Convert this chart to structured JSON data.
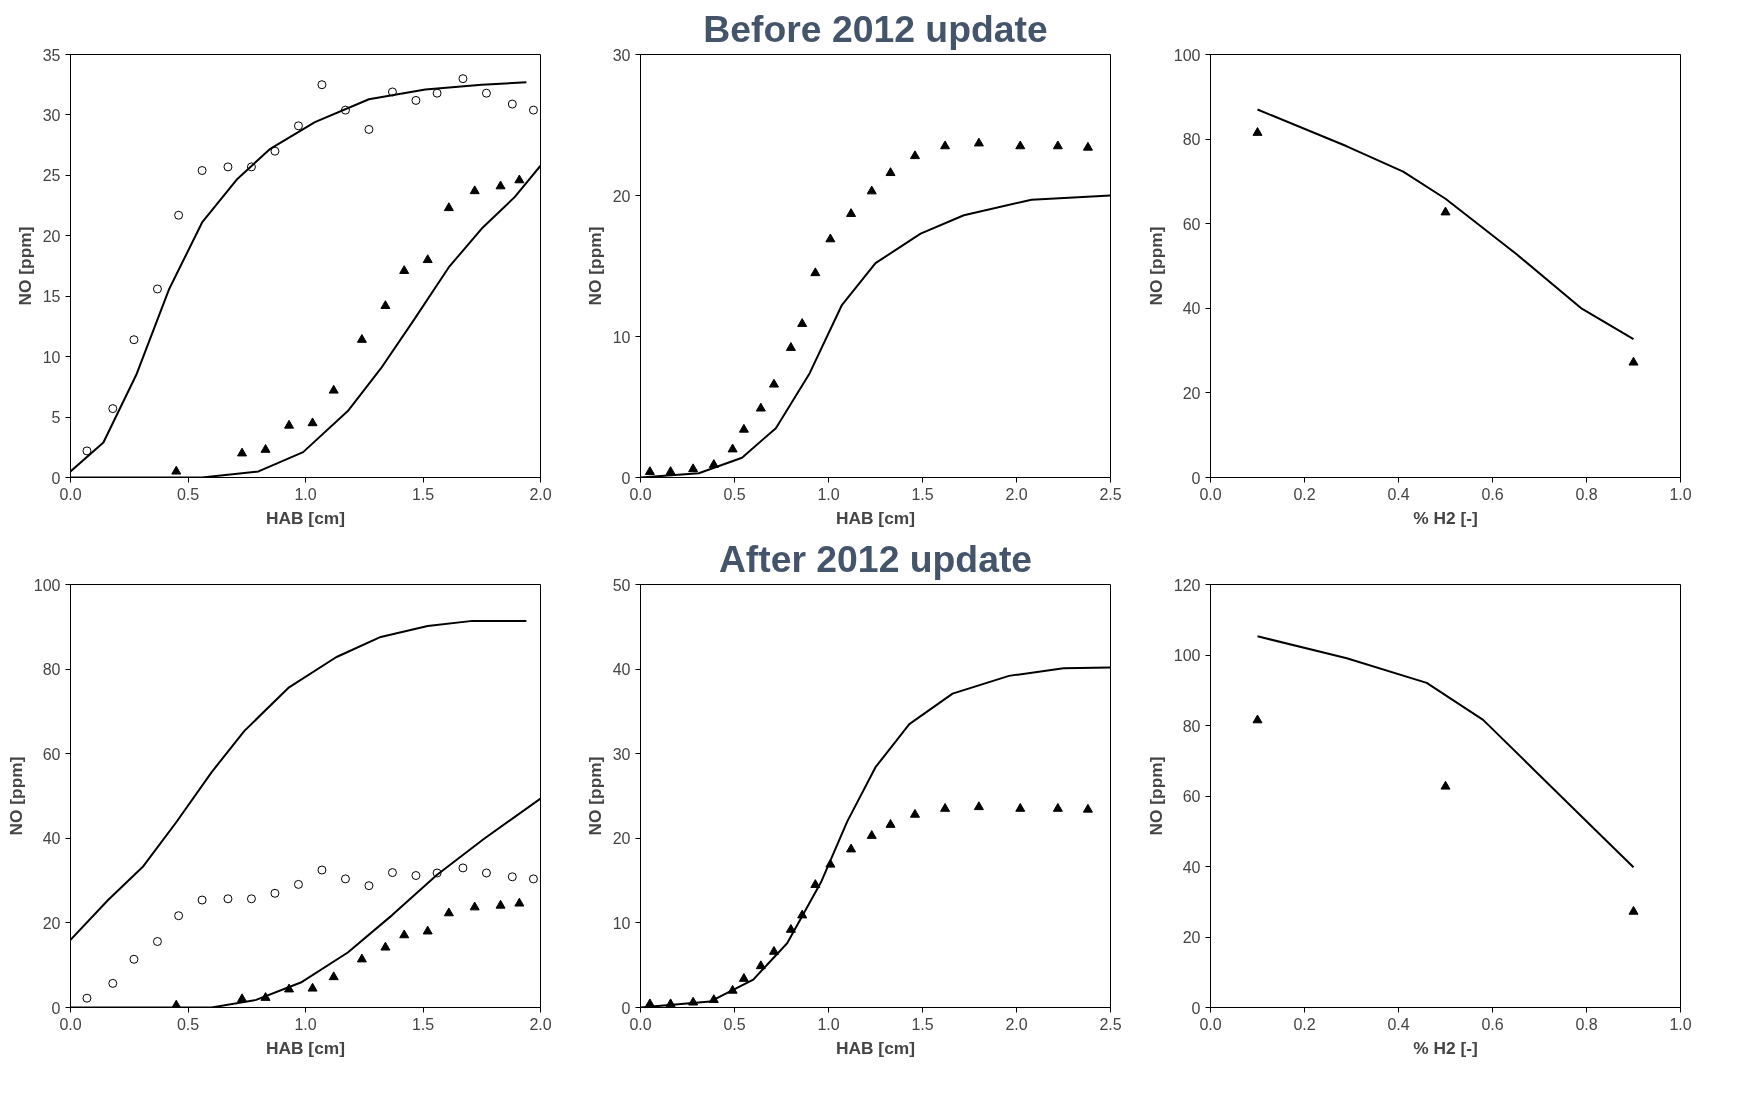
{
  "chart_data": [
    {
      "type": "line",
      "xlabel": "HAB [cm]",
      "ylabel": "NO [ppm]",
      "xlim": [
        0,
        2
      ],
      "ylim": [
        0,
        35
      ],
      "xticks": [
        {
          "value": 0,
          "label": "0.0"
        },
        {
          "value": 0.5,
          "label": "0.5"
        },
        {
          "value": 1,
          "label": "1.0"
        },
        {
          "value": 1.5,
          "label": "1.5"
        },
        {
          "value": 2,
          "label": "2.0"
        }
      ],
      "yticks": [
        0,
        5,
        10,
        15,
        20,
        25,
        30,
        35
      ],
      "grid": false,
      "series": [
        {
          "type": "scatter",
          "marker": "circle",
          "color": "#000000",
          "x": [
            0.07,
            0.18,
            0.27,
            0.37,
            0.46,
            0.56,
            0.67,
            0.77,
            0.87,
            0.97,
            1.07,
            1.17,
            1.27,
            1.37,
            1.47,
            1.56,
            1.67,
            1.77,
            1.88,
            1.97
          ],
          "values": [
            2.2,
            5.7,
            11.4,
            15.6,
            21.7,
            25.4,
            25.7,
            25.7,
            27.0,
            29.1,
            32.5,
            30.4,
            28.8,
            31.9,
            31.2,
            31.8,
            33.0,
            31.8,
            30.9,
            30.4
          ]
        },
        {
          "type": "scatter",
          "marker": "triangle",
          "color": "#000000",
          "x": [
            0.45,
            0.73,
            0.83,
            0.93,
            1.03,
            1.12,
            1.24,
            1.34,
            1.42,
            1.52,
            1.61,
            1.72,
            1.83,
            1.91
          ],
          "values": [
            0.5,
            2.0,
            2.3,
            4.3,
            4.5,
            7.2,
            11.4,
            14.2,
            17.1,
            18.0,
            22.3,
            23.7,
            24.1,
            24.6
          ]
        },
        {
          "marker": "none",
          "color": "#000000",
          "x": [
            0,
            0.14,
            0.28,
            0.42,
            0.56,
            0.71,
            0.85,
            1.04,
            1.27,
            1.51,
            1.75,
            1.94
          ],
          "values": [
            0.5,
            2.9,
            8.5,
            15.6,
            21.1,
            24.7,
            27.2,
            29.4,
            31.3,
            32.1,
            32.5,
            32.7
          ]
        },
        {
          "marker": "none",
          "color": "#000000",
          "x": [
            0,
            0.56,
            0.8,
            0.99,
            1.18,
            1.32,
            1.46,
            1.61,
            1.75,
            1.89,
            2.0
          ],
          "values": [
            0,
            0,
            0.5,
            2.1,
            5.5,
            9.0,
            13.0,
            17.4,
            20.6,
            23.2,
            25.8
          ]
        }
      ]
    },
    {
      "type": "line",
      "title": "Before 2012 update",
      "xlabel": "HAB [cm]",
      "ylabel": "NO [ppm]",
      "xlim": [
        0,
        2.5
      ],
      "ylim": [
        0,
        30
      ],
      "xticks": [
        {
          "value": 0,
          "label": "0.0"
        },
        {
          "value": 0.5,
          "label": "0.5"
        },
        {
          "value": 1,
          "label": "1.0"
        },
        {
          "value": 1.5,
          "label": "1.5"
        },
        {
          "value": 2,
          "label": "2.0"
        },
        {
          "value": 2.5,
          "label": "2.5"
        }
      ],
      "yticks": [
        0,
        10,
        20,
        30
      ],
      "grid": false,
      "series": [
        {
          "type": "scatter",
          "marker": "triangle",
          "color": "#000000",
          "x": [
            0.05,
            0.16,
            0.28,
            0.39,
            0.49,
            0.55,
            0.64,
            0.71,
            0.8,
            0.86,
            0.93,
            1.01,
            1.12,
            1.23,
            1.33,
            1.46,
            1.62,
            1.8,
            2.02,
            2.22,
            2.38
          ],
          "values": [
            0.4,
            0.4,
            0.6,
            0.9,
            2.0,
            3.4,
            4.9,
            6.6,
            9.2,
            10.9,
            14.5,
            16.9,
            18.7,
            20.3,
            21.6,
            22.8,
            23.5,
            23.7,
            23.5,
            23.5,
            23.4
          ]
        },
        {
          "marker": "none",
          "color": "#000000",
          "x": [
            0,
            0.31,
            0.54,
            0.72,
            0.9,
            1.07,
            1.25,
            1.49,
            1.72,
            2.08,
            2.5
          ],
          "values": [
            0,
            0.3,
            1.4,
            3.5,
            7.4,
            12.2,
            15.2,
            17.3,
            18.6,
            19.7,
            20.0
          ]
        }
      ]
    },
    {
      "type": "line",
      "xlabel": "% H2 [-]",
      "ylabel": "NO [ppm]",
      "xlim": [
        0,
        1
      ],
      "ylim": [
        0,
        100
      ],
      "xticks": [
        {
          "value": 0,
          "label": "0.0"
        },
        {
          "value": 0.2,
          "label": "0.2"
        },
        {
          "value": 0.4,
          "label": "0.4"
        },
        {
          "value": 0.6,
          "label": "0.6"
        },
        {
          "value": 0.8,
          "label": "0.8"
        },
        {
          "value": 1,
          "label": "1.0"
        }
      ],
      "yticks": [
        0,
        20,
        40,
        60,
        80,
        100
      ],
      "grid": false,
      "series": [
        {
          "type": "scatter",
          "marker": "triangle",
          "color": "#000000",
          "x": [
            0.1,
            0.5,
            0.9
          ],
          "values": [
            81.5,
            62.7,
            27.2
          ]
        },
        {
          "marker": "none",
          "color": "#000000",
          "x": [
            0.1,
            0.29,
            0.41,
            0.5,
            0.65,
            0.79,
            0.9
          ],
          "values": [
            87.0,
            78.3,
            72.3,
            65.9,
            52.9,
            39.9,
            32.7
          ]
        }
      ]
    },
    {
      "type": "line",
      "xlabel": "HAB [cm]",
      "ylabel": "NO [ppm]",
      "xlim": [
        0,
        2
      ],
      "ylim": [
        0,
        100
      ],
      "xticks": [
        {
          "value": 0,
          "label": "0.0"
        },
        {
          "value": 0.5,
          "label": "0.5"
        },
        {
          "value": 1,
          "label": "1.0"
        },
        {
          "value": 1.5,
          "label": "1.5"
        },
        {
          "value": 2,
          "label": "2.0"
        }
      ],
      "yticks": [
        0,
        20,
        40,
        60,
        80,
        100
      ],
      "grid": false,
      "series": [
        {
          "type": "scatter",
          "marker": "circle",
          "color": "#000000",
          "x": [
            0.07,
            0.18,
            0.27,
            0.37,
            0.46,
            0.56,
            0.67,
            0.77,
            0.87,
            0.97,
            1.07,
            1.17,
            1.27,
            1.37,
            1.47,
            1.56,
            1.67,
            1.77,
            1.88,
            1.97
          ],
          "values": [
            2.2,
            5.7,
            11.4,
            15.6,
            21.7,
            25.4,
            25.7,
            25.7,
            27.0,
            29.1,
            32.5,
            30.4,
            28.8,
            31.9,
            31.2,
            31.8,
            33.0,
            31.8,
            30.9,
            30.4
          ]
        },
        {
          "type": "scatter",
          "marker": "triangle",
          "color": "#000000",
          "x": [
            0.45,
            0.73,
            0.83,
            0.93,
            1.03,
            1.12,
            1.24,
            1.34,
            1.42,
            1.52,
            1.61,
            1.72,
            1.83,
            1.91
          ],
          "values": [
            0.5,
            2.0,
            2.3,
            4.3,
            4.5,
            7.2,
            11.4,
            14.2,
            17.1,
            18.0,
            22.3,
            23.7,
            24.1,
            24.6
          ]
        },
        {
          "marker": "none",
          "color": "#000000",
          "x": [
            0,
            0.16,
            0.31,
            0.45,
            0.6,
            0.74,
            0.93,
            1.13,
            1.32,
            1.52,
            1.71,
            1.94
          ],
          "values": [
            16,
            25.4,
            33.4,
            43.8,
            55.6,
            65.4,
            75.7,
            82.8,
            87.6,
            90.2,
            91.4,
            91.4
          ]
        },
        {
          "marker": "none",
          "color": "#000000",
          "x": [
            0,
            0.6,
            0.79,
            0.98,
            1.18,
            1.37,
            1.56,
            1.76,
            2.0
          ],
          "values": [
            0,
            0,
            1.8,
            5.9,
            13,
            21.9,
            31.4,
            39.9,
            49.4
          ]
        }
      ]
    },
    {
      "type": "line",
      "title": "After 2012 update",
      "xlabel": "HAB [cm]",
      "ylabel": "NO [ppm]",
      "xlim": [
        0,
        2.5
      ],
      "ylim": [
        0,
        50
      ],
      "xticks": [
        {
          "value": 0,
          "label": "0.0"
        },
        {
          "value": 0.5,
          "label": "0.5"
        },
        {
          "value": 1,
          "label": "1.0"
        },
        {
          "value": 1.5,
          "label": "1.5"
        },
        {
          "value": 2,
          "label": "2.0"
        },
        {
          "value": 2.5,
          "label": "2.5"
        }
      ],
      "yticks": [
        0,
        10,
        20,
        30,
        40,
        50
      ],
      "grid": false,
      "series": [
        {
          "type": "scatter",
          "marker": "triangle",
          "color": "#000000",
          "x": [
            0.05,
            0.16,
            0.28,
            0.39,
            0.49,
            0.55,
            0.64,
            0.71,
            0.8,
            0.86,
            0.93,
            1.01,
            1.12,
            1.23,
            1.33,
            1.46,
            1.62,
            1.8,
            2.02,
            2.22,
            2.38
          ],
          "values": [
            0.4,
            0.4,
            0.6,
            0.9,
            2.0,
            3.4,
            4.9,
            6.6,
            9.2,
            10.9,
            14.5,
            16.9,
            18.7,
            20.3,
            21.6,
            22.8,
            23.5,
            23.7,
            23.5,
            23.5,
            23.4
          ]
        },
        {
          "marker": "none",
          "color": "#000000",
          "x": [
            0,
            0.37,
            0.6,
            0.78,
            0.96,
            1.1,
            1.25,
            1.43,
            1.66,
            1.96,
            2.25,
            2.5
          ],
          "values": [
            0,
            0.7,
            3.3,
            7.6,
            14.8,
            22.0,
            28.4,
            33.5,
            37.1,
            39.2,
            40.1,
            40.2
          ]
        }
      ]
    },
    {
      "type": "line",
      "xlabel": "% H2 [-]",
      "ylabel": "NO [ppm]",
      "xlim": [
        0,
        1
      ],
      "ylim": [
        0,
        120
      ],
      "xticks": [
        {
          "value": 0,
          "label": "0.0"
        },
        {
          "value": 0.2,
          "label": "0.2"
        },
        {
          "value": 0.4,
          "label": "0.4"
        },
        {
          "value": 0.6,
          "label": "0.6"
        },
        {
          "value": 0.8,
          "label": "0.8"
        },
        {
          "value": 1,
          "label": "1.0"
        }
      ],
      "yticks": [
        0,
        20,
        40,
        60,
        80,
        100,
        120
      ],
      "grid": false,
      "series": [
        {
          "type": "scatter",
          "marker": "triangle",
          "color": "#000000",
          "x": [
            0.1,
            0.5,
            0.9
          ],
          "values": [
            81.5,
            62.7,
            27.2
          ]
        },
        {
          "marker": "none",
          "color": "#000000",
          "x": [
            0.1,
            0.29,
            0.46,
            0.58,
            0.7,
            0.82,
            0.9
          ],
          "values": [
            105.3,
            99.1,
            92.1,
            81.6,
            65.9,
            50.2,
            39.8
          ]
        }
      ]
    }
  ]
}
